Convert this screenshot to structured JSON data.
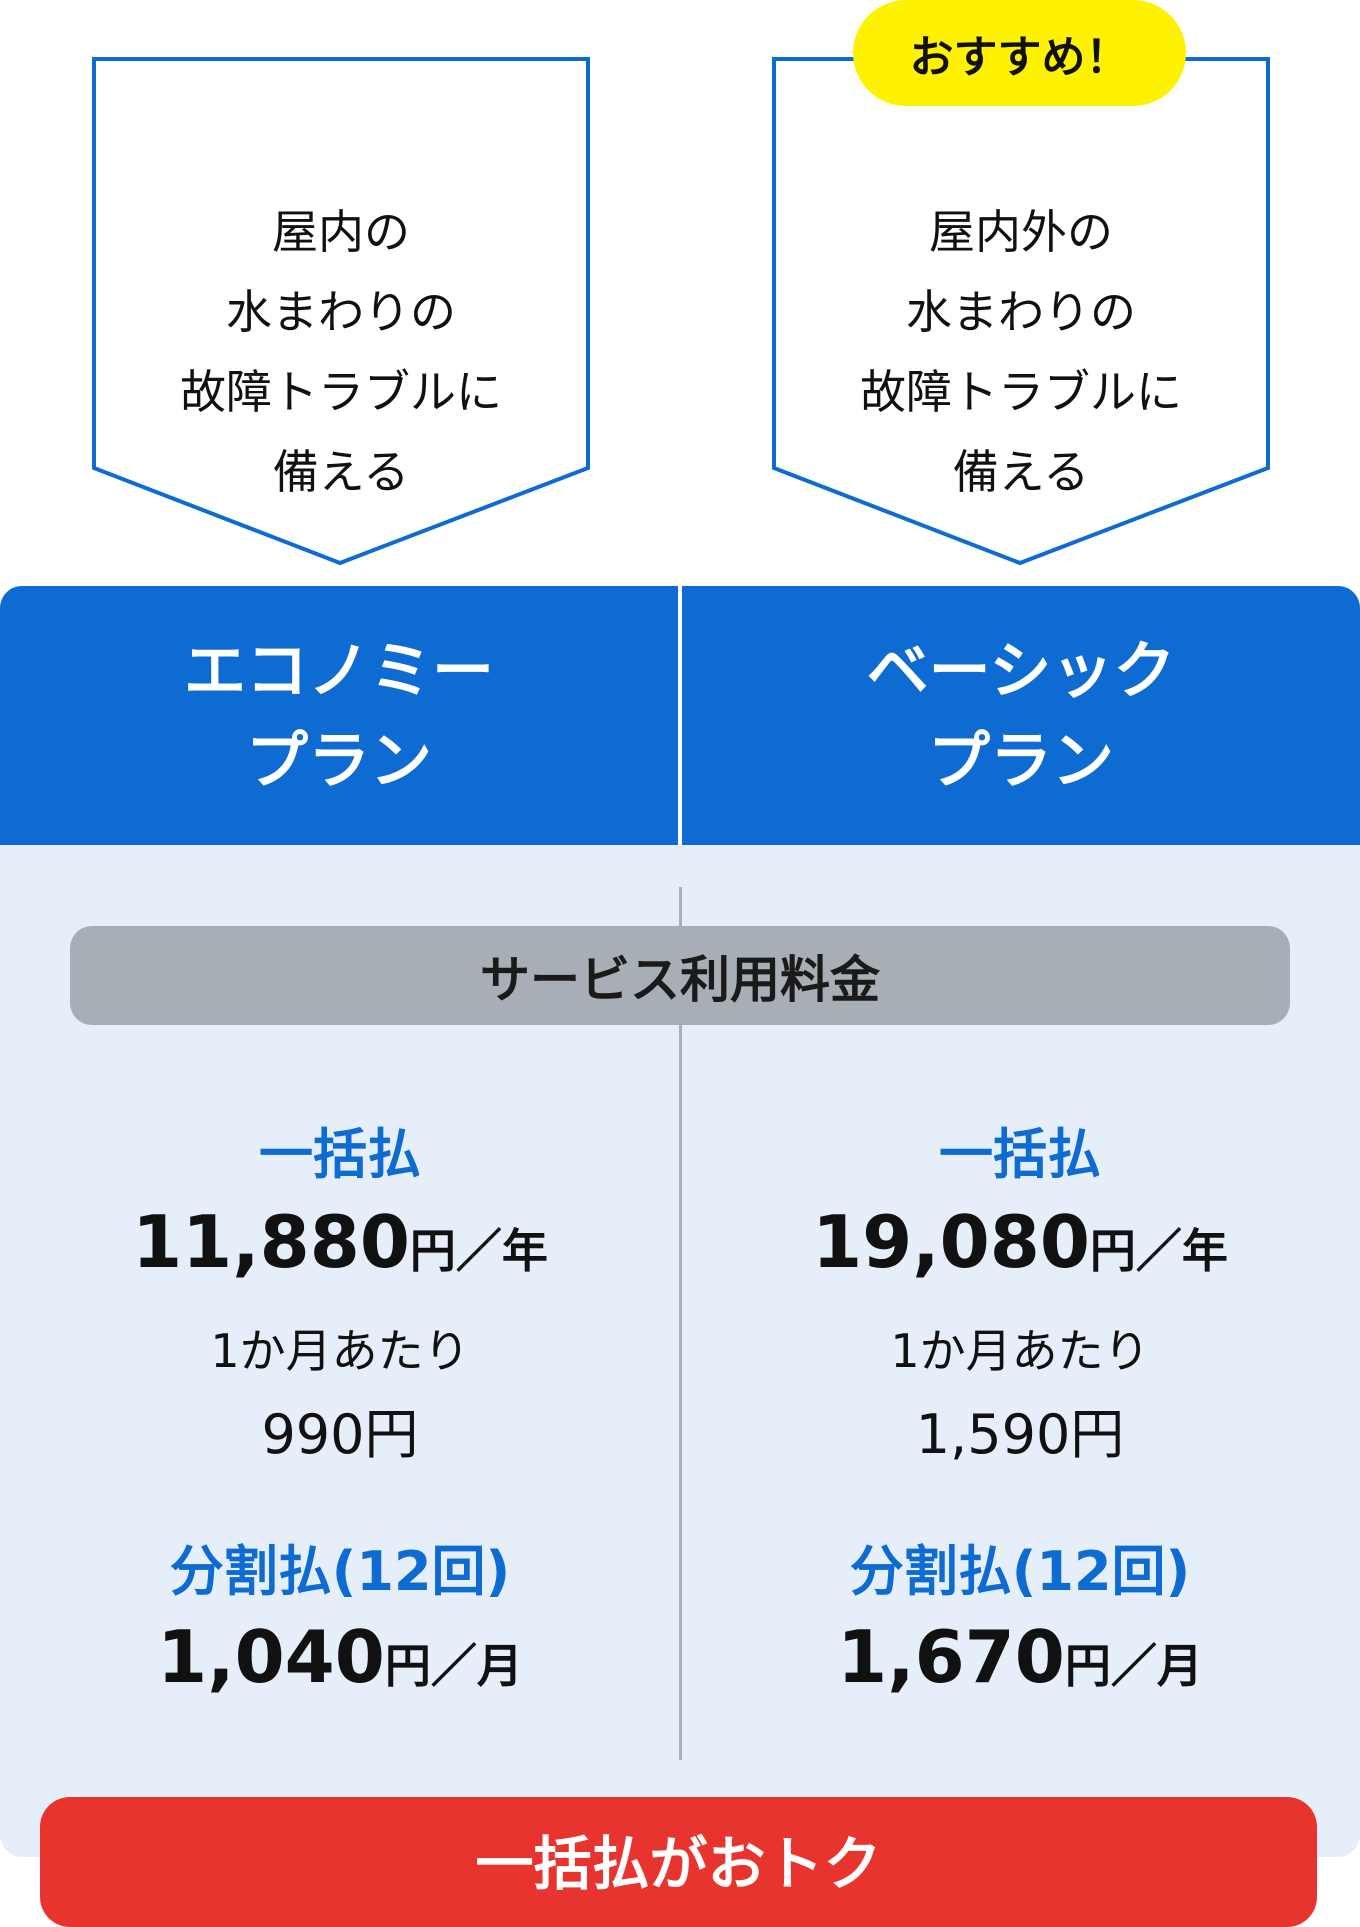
{
  "colors": {
    "brand_blue": "#0d6bd1",
    "badge_yellow": "#fff200",
    "cta_red": "#e8342e",
    "panel_bg": "#e6eef9",
    "pill_gray": "#a8aeb6"
  },
  "badge": "おすすめ！",
  "plans": [
    {
      "desc": [
        "屋内の",
        "水まわりの",
        "故障トラブルに",
        "備える"
      ],
      "name": [
        "エコノミー",
        "プラン"
      ],
      "lump_label": "一括払",
      "lump_price": "11,880",
      "lump_unit": "円／年",
      "monthly_label": "1か月あたり",
      "monthly_price": "990円",
      "install_label": "分割払(12回)",
      "install_price": "1,040",
      "install_unit": "円／月"
    },
    {
      "desc": [
        "屋内外の",
        "水まわりの",
        "故障トラブルに",
        "備える"
      ],
      "name": [
        "ベーシック",
        "プラン"
      ],
      "lump_label": "一括払",
      "lump_price": "19,080",
      "lump_unit": "円／年",
      "monthly_label": "1か月あたり",
      "monthly_price": "1,590円",
      "install_label": "分割払(12回)",
      "install_price": "1,670",
      "install_unit": "円／月"
    }
  ],
  "fee_label": "サービス利用料金",
  "cta": "一括払がおトク"
}
